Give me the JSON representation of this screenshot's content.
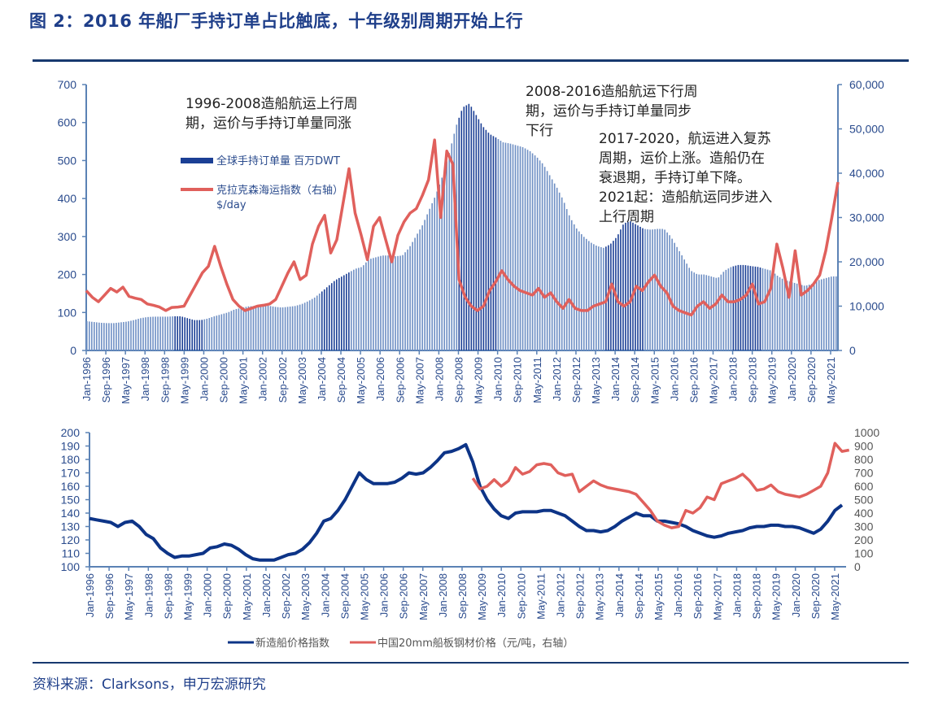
{
  "header": {
    "title": "图 2：2016 年船厂手持订单占比触底，十年级别周期开始上行"
  },
  "footer": {
    "source": "资料来源：Clarksons，申万宏源研究"
  },
  "colors": {
    "title": "#1f3f8a",
    "rule": "#17396f",
    "bar_light": "#6e8fc4",
    "bar_dark": "#1b3f95",
    "red_line": "#e0605c",
    "navy_line": "#0d3487",
    "axis": "#5b82b5"
  },
  "annotations": [
    {
      "lines": [
        "1996-2008造船航运上行周",
        "期，运价与手持订单量同涨"
      ]
    },
    {
      "lines": [
        "2008-2016造船航运下行周",
        "期，运价与手持订单量同步",
        "下行"
      ]
    },
    {
      "lines": [
        "2017-2020，航运进入复苏",
        "周期，运价上涨。造船仍在",
        "衰退期，手持订单下降。",
        "2021起：造船航运同步进入",
        "上行周期"
      ]
    }
  ],
  "chart_data": [
    {
      "type": "bar",
      "title": "",
      "xlabel": "",
      "ylabel": "",
      "ylim": [
        0,
        700
      ],
      "y2lim": [
        0,
        60000
      ],
      "yticks": [
        "0",
        "100",
        "200",
        "300",
        "400",
        "500",
        "600",
        "700"
      ],
      "y2ticks": [
        "0",
        "10,000",
        "20,000",
        "30,000",
        "40,000",
        "50,000",
        "60,000"
      ],
      "grid": false,
      "legend": "upper-left-inside",
      "x_tick_labels": [
        "Jan-1996",
        "Sep-1996",
        "May-1997",
        "Jan-1998",
        "Sep-1998",
        "May-1999",
        "Jan-2000",
        "Sep-2000",
        "May-2001",
        "Jan-2002",
        "Sep-2002",
        "May-2003",
        "Jan-2004",
        "Sep-2004",
        "May-2005",
        "Jan-2006",
        "Sep-2006",
        "May-2007",
        "Jan-2008",
        "Sep-2008",
        "May-2009",
        "Jan-2010",
        "Sep-2010",
        "May-2011",
        "Jan-2012",
        "Sep-2012",
        "May-2013",
        "Jan-2014",
        "Sep-2014",
        "May-2015",
        "Jan-2016",
        "Sep-2016",
        "May-2017",
        "Jan-2018",
        "Sep-2018",
        "May-2019",
        "Jan-2020",
        "Sep-2020",
        "May-2021"
      ],
      "x_step_months": 4,
      "x_start": "Jan-1996",
      "highlight_periods": [
        [
          "Jan-1999",
          "Dec-1999"
        ],
        [
          "Jan-2004",
          "Dec-2004"
        ],
        [
          "Sep-2008",
          "Dec-2009"
        ],
        [
          "Sep-2013",
          "Dec-2014"
        ],
        [
          "Jan-2018",
          "Dec-2018"
        ]
      ],
      "series": [
        {
          "name": "全球手持订单量 百万DWT",
          "axis": "left",
          "kind": "bar",
          "values": [
            77,
            75,
            73,
            72,
            72,
            74,
            76,
            80,
            85,
            88,
            89,
            89,
            89,
            90,
            90,
            85,
            80,
            80,
            84,
            90,
            95,
            100,
            108,
            112,
            116,
            117,
            118,
            118,
            115,
            113,
            115,
            117,
            122,
            130,
            140,
            155,
            170,
            185,
            195,
            205,
            215,
            220,
            240,
            245,
            250,
            250,
            248,
            250,
            270,
            300,
            330,
            370,
            410,
            460,
            520,
            590,
            640,
            650,
            620,
            590,
            570,
            560,
            548,
            545,
            540,
            535,
            525,
            510,
            490,
            460,
            430,
            395,
            350,
            320,
            300,
            285,
            275,
            270,
            280,
            300,
            335,
            340,
            330,
            320,
            318,
            320,
            320,
            300,
            270,
            240,
            210,
            200,
            200,
            195,
            190,
            210,
            220,
            225,
            225,
            222,
            220,
            215,
            210,
            195,
            185,
            180,
            175,
            170,
            175,
            185,
            190,
            195
          ]
        },
        {
          "name": "克拉克森海运指数（右轴） $/day",
          "axis": "right",
          "kind": "line",
          "values": [
            13500,
            12000,
            11000,
            12500,
            14000,
            13200,
            14300,
            12200,
            11800,
            11500,
            10500,
            10200,
            9800,
            9000,
            9700,
            9800,
            10000,
            12500,
            15000,
            17500,
            19000,
            23500,
            19000,
            15000,
            11500,
            10000,
            9000,
            9500,
            10000,
            10200,
            10500,
            11500,
            14500,
            17500,
            20000,
            16000,
            17000,
            24000,
            28000,
            30500,
            22000,
            25000,
            33000,
            41000,
            31000,
            26000,
            20500,
            28000,
            30000,
            25000,
            20000,
            26000,
            29000,
            31000,
            32000,
            35000,
            38500,
            47500,
            30000,
            45000,
            42000,
            16000,
            12000,
            10000,
            9000,
            10000,
            13500,
            15500,
            18000,
            16000,
            14500,
            13500,
            13000,
            12500,
            14000,
            12000,
            13000,
            11000,
            9500,
            11500,
            9500,
            9000,
            9000,
            10000,
            10500,
            11000,
            15000,
            11000,
            10000,
            11000,
            14500,
            13500,
            15500,
            17000,
            14500,
            13000,
            10000,
            9000,
            8500,
            8000,
            10000,
            11000,
            9500,
            10500,
            12500,
            11000,
            11000,
            11500,
            12500,
            15000,
            10500,
            11000,
            14000,
            24000,
            18500,
            12000,
            22500,
            12500,
            13500,
            15000,
            17000,
            22500,
            30000,
            38000
          ]
        }
      ]
    },
    {
      "type": "line",
      "title": "",
      "xlabel": "",
      "ylabel": "",
      "ylim": [
        100,
        200
      ],
      "y2lim": [
        0,
        1000
      ],
      "yticks": [
        "100",
        "110",
        "120",
        "130",
        "140",
        "150",
        "160",
        "170",
        "180",
        "190",
        "200"
      ],
      "y2ticks": [
        "0",
        "100",
        "200",
        "300",
        "400",
        "500",
        "600",
        "700",
        "800",
        "900",
        "1000"
      ],
      "grid": false,
      "legend": "bottom",
      "x_tick_labels": [
        "Jan-1996",
        "Sep-1996",
        "May-1997",
        "Jan-1998",
        "Sep-1998",
        "May-1999",
        "Jan-2000",
        "Sep-2000",
        "May-2001",
        "Jan-2002",
        "Sep-2002",
        "May-2003",
        "Jan-2004",
        "Sep-2004",
        "May-2005",
        "Jan-2006",
        "Sep-2006",
        "May-2007",
        "Jan-2008",
        "Sep-2008",
        "May-2009",
        "Jan-2010",
        "Sep-2010",
        "May-2011",
        "Jan-2012",
        "Sep-2012",
        "May-2013",
        "Jan-2014",
        "Sep-2014",
        "May-2015",
        "Jan-2016",
        "Sep-2016",
        "May-2017",
        "Jan-2018",
        "Sep-2018",
        "May-2019",
        "Jan-2020",
        "Sep-2020",
        "May-2021"
      ],
      "x_step_months": 4,
      "x_start": "Jan-1996",
      "series": [
        {
          "name": "新造船价格指数",
          "axis": "left",
          "start_index": 0,
          "values": [
            136,
            135,
            134,
            133,
            130,
            133,
            134,
            130,
            124,
            121,
            114,
            110,
            107,
            108,
            108,
            109,
            110,
            114,
            115,
            117,
            116,
            113,
            109,
            106,
            105,
            105,
            105,
            107,
            109,
            110,
            113,
            118,
            125,
            134,
            136,
            142,
            150,
            160,
            170,
            165,
            162,
            162,
            162,
            163,
            166,
            170,
            169,
            170,
            174,
            179,
            185,
            186,
            188,
            191,
            178,
            160,
            150,
            143,
            138,
            136,
            140,
            141,
            141,
            141,
            142,
            142,
            140,
            138,
            134,
            130,
            127,
            127,
            126,
            127,
            130,
            134,
            137,
            140,
            138,
            138,
            134,
            134,
            133,
            132,
            130,
            127,
            125,
            123,
            122,
            123,
            125,
            126,
            127,
            129,
            130,
            130,
            131,
            131,
            130,
            130,
            129,
            127,
            125,
            128,
            134,
            142,
            146
          ]
        },
        {
          "name": "中国20mm船板钢材价格（元/吨，右轴）",
          "axis": "right",
          "start_index": 54,
          "values": [
            660,
            580,
            600,
            650,
            600,
            640,
            740,
            690,
            710,
            760,
            770,
            760,
            700,
            680,
            690,
            560,
            600,
            640,
            610,
            590,
            580,
            570,
            560,
            540,
            480,
            420,
            340,
            310,
            290,
            300,
            420,
            400,
            440,
            520,
            500,
            620,
            640,
            660,
            690,
            640,
            570,
            580,
            610,
            560,
            540,
            530,
            520,
            540,
            570,
            600,
            700,
            920,
            860,
            870
          ]
        }
      ]
    }
  ],
  "legend_top": {
    "bar_label": "全球手持订单量 百万DWT",
    "line_label_1": "克拉克森海运指数（右轴）",
    "line_label_2": "$/day"
  },
  "legend_bottom": {
    "navy_label": "新造船价格指数",
    "red_label": "中国20mm船板钢材价格（元/吨，右轴）"
  }
}
